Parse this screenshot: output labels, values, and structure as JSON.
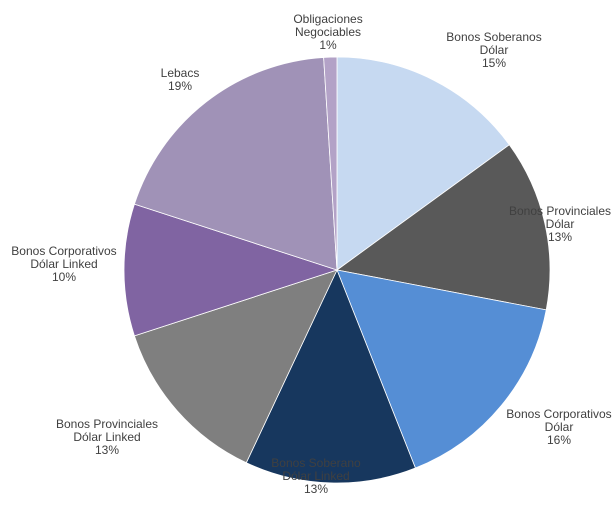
{
  "chart_data": {
    "type": "pie",
    "start_angle_deg": 0,
    "direction": "clockwise",
    "slices": [
      {
        "label": [
          "Bonos Soberanos",
          "Dólar"
        ],
        "value": 15,
        "value_label": "15%",
        "color": "#c6d9f1"
      },
      {
        "label": [
          "Bonos Provinciales",
          "Dólar"
        ],
        "value": 13,
        "value_label": "13%",
        "color": "#595959"
      },
      {
        "label": [
          "Bonos Corporativos",
          "Dólar"
        ],
        "value": 16,
        "value_label": "16%",
        "color": "#558ed5"
      },
      {
        "label": [
          "Bonos Soberano",
          "Dólar Linked"
        ],
        "value": 13,
        "value_label": "13%",
        "color": "#17375e"
      },
      {
        "label": [
          "Bonos Provinciales",
          "Dólar Linked"
        ],
        "value": 13,
        "value_label": "13%",
        "color": "#7f7f7f"
      },
      {
        "label": [
          "Bonos Corporativos",
          "Dólar Linked"
        ],
        "value": 10,
        "value_label": "10%",
        "color": "#8064a2"
      },
      {
        "label": [
          "Lebacs"
        ],
        "value": 19,
        "value_label": "19%",
        "color": "#a092b7"
      },
      {
        "label": [
          "Obligaciones",
          "Negociables"
        ],
        "value": 1,
        "value_label": "1%",
        "color": "#b3a2c7"
      }
    ]
  }
}
